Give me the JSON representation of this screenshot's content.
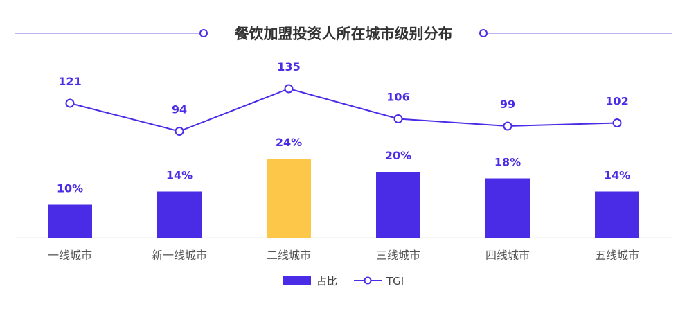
{
  "colors": {
    "primary": "#4a2ce6",
    "highlight": "#fdc84a",
    "title_line": "#a99cf0",
    "axis": "#eeeeee"
  },
  "chart_data": {
    "type": "bar",
    "title": "餐饮加盟投资人所在城市级别分布",
    "categories": [
      "一线城市",
      "新一线城市",
      "二线城市",
      "三线城市",
      "四线城市",
      "五线城市"
    ],
    "series": [
      {
        "name": "占比",
        "type": "bar",
        "values": [
          10,
          14,
          24,
          20,
          18,
          14
        ],
        "labels": [
          "10%",
          "14%",
          "24%",
          "20%",
          "18%",
          "14%"
        ],
        "highlight_index": 2
      },
      {
        "name": "TGI",
        "type": "line",
        "values": [
          121,
          94,
          135,
          106,
          99,
          102
        ],
        "labels": [
          "121",
          "94",
          "135",
          "106",
          "99",
          "102"
        ]
      }
    ],
    "legend_position": "bottom-center",
    "grid": false
  }
}
